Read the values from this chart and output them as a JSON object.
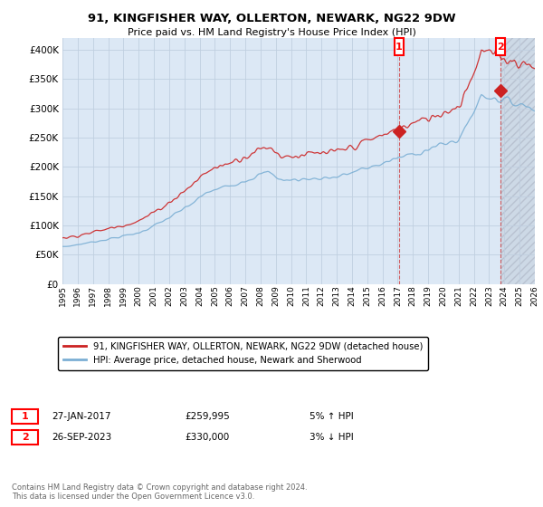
{
  "title": "91, KINGFISHER WAY, OLLERTON, NEWARK, NG22 9DW",
  "subtitle": "Price paid vs. HM Land Registry's House Price Index (HPI)",
  "hpi_label": "HPI: Average price, detached house, Newark and Sherwood",
  "property_label": "91, KINGFISHER WAY, OLLERTON, NEWARK, NG22 9DW (detached house)",
  "hpi_color": "#7bafd4",
  "property_color": "#cc2222",
  "annotation1_label": "1",
  "annotation1_date": "27-JAN-2017",
  "annotation1_price": "£259,995",
  "annotation1_hpi": "5% ↑ HPI",
  "annotation2_label": "2",
  "annotation2_date": "26-SEP-2023",
  "annotation2_price": "£330,000",
  "annotation2_hpi": "3% ↓ HPI",
  "footer": "Contains HM Land Registry data © Crown copyright and database right 2024.\nThis data is licensed under the Open Government Licence v3.0.",
  "ylim": [
    0,
    420000
  ],
  "yticks": [
    0,
    50000,
    100000,
    150000,
    200000,
    250000,
    300000,
    350000,
    400000
  ],
  "ytick_labels": [
    "£0",
    "£50K",
    "£100K",
    "£150K",
    "£200K",
    "£250K",
    "£300K",
    "£350K",
    "£400K"
  ],
  "sale1_year": 2017.07,
  "sale1_price": 259995,
  "sale2_year": 2023.73,
  "sale2_price": 330000,
  "background_color": "#ffffff",
  "plot_bg_color": "#dce8f5",
  "grid_color": "#c0cfe0"
}
